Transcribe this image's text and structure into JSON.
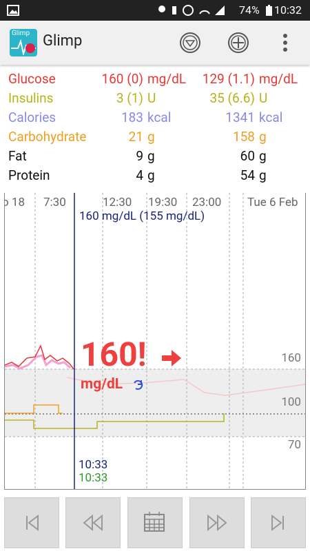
{
  "status": {
    "battery": "74%",
    "time": "10:32"
  },
  "app": {
    "icon_label": "Glimp",
    "title": "Glimp"
  },
  "summary": {
    "rows": [
      {
        "label": "Glucose",
        "value1": "160 (0)",
        "unit1": "mg/dL",
        "value2": "129 (1.1)",
        "unit2": "mg/dL",
        "color": "#e53935"
      },
      {
        "label": "Insulins",
        "value1": "3 (1)",
        "unit1": "U",
        "value2": "35 (6.6)",
        "unit2": "U",
        "color": "#b9b31a"
      },
      {
        "label": "Calories",
        "value1": "183",
        "unit1": "kcal",
        "value2": "1341",
        "unit2": "kcal",
        "color": "#8a8ae6"
      },
      {
        "label": "Carbohydrate",
        "value1": "21",
        "unit1": "g",
        "value2": "158",
        "unit2": "g",
        "color": "#f0a020"
      },
      {
        "label": "Fat",
        "value1": "9",
        "unit1": "g",
        "value2": "60",
        "unit2": "g",
        "color": "#111111"
      },
      {
        "label": "Protein",
        "value1": "4",
        "unit1": "g",
        "value2": "54",
        "unit2": "g",
        "color": "#111111"
      }
    ]
  },
  "graph": {
    "x_labels": [
      "o 18",
      "7:30",
      "12:30",
      "19:30",
      "23:00",
      "Tue 6 Feb"
    ],
    "y_labels": [
      "160",
      "100",
      "70"
    ],
    "reading": "160 mg/dL (155 mg/dL)",
    "current": {
      "value": "160!",
      "unit": "mg/dL"
    },
    "times": [
      "10:33",
      "10:33"
    ]
  }
}
